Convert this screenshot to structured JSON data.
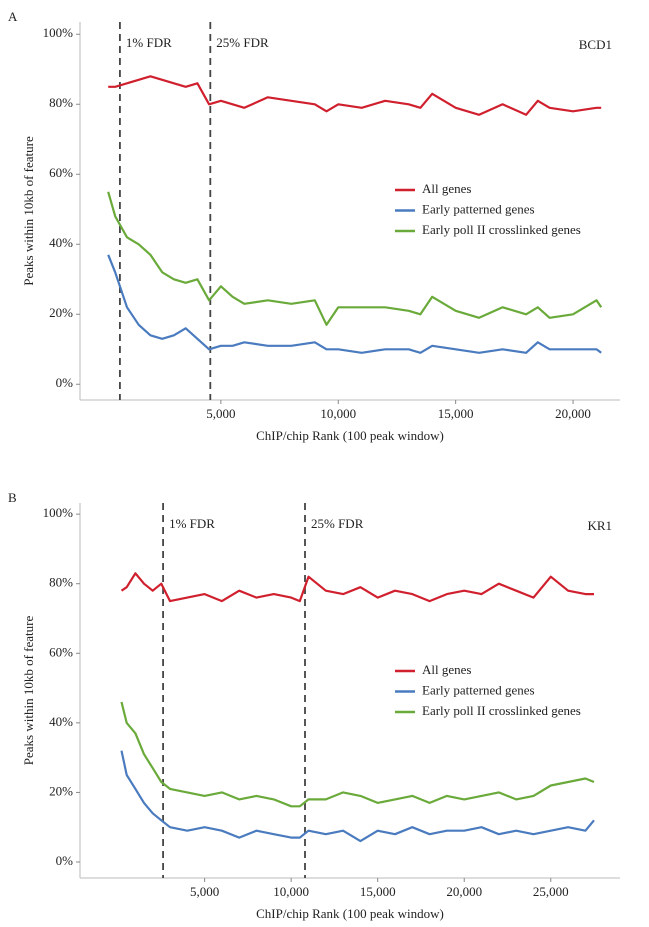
{
  "chart_data": [
    {
      "type": "line",
      "panel_label": "A",
      "annotation": "BCD1",
      "x_label": "ChIP/chip Rank (100 peak window)",
      "y_label": "Peaks within 10kb of feature",
      "x": [
        200,
        500,
        1000,
        1500,
        2000,
        2500,
        3000,
        3500,
        4000,
        4500,
        5000,
        5500,
        6000,
        7000,
        8000,
        9000,
        9500,
        10000,
        11000,
        12000,
        13000,
        13500,
        14000,
        15000,
        16000,
        17000,
        18000,
        18500,
        19000,
        20000,
        21000,
        21200
      ],
      "series": [
        {
          "name": "All genes",
          "color": "#d0202e",
          "values": [
            85,
            85,
            86,
            87,
            88,
            87,
            86,
            85,
            86,
            80,
            81,
            80,
            79,
            82,
            81,
            80,
            78,
            80,
            79,
            81,
            80,
            79,
            83,
            79,
            77,
            80,
            77,
            81,
            79,
            78,
            79,
            79
          ]
        },
        {
          "name": "Early patterned genes",
          "color": "#4a7bbf",
          "values": [
            37,
            32,
            22,
            17,
            14,
            13,
            14,
            16,
            13,
            10,
            11,
            11,
            12,
            11,
            11,
            12,
            10,
            10,
            9,
            10,
            10,
            9,
            11,
            10,
            9,
            10,
            9,
            12,
            10,
            10,
            10,
            9
          ]
        },
        {
          "name": "Early poll II crosslinked genes",
          "color": "#6aaa3a",
          "values": [
            55,
            48,
            42,
            40,
            37,
            32,
            30,
            29,
            30,
            24,
            28,
            25,
            23,
            24,
            23,
            24,
            17,
            22,
            22,
            22,
            21,
            20,
            25,
            21,
            19,
            22,
            20,
            22,
            19,
            20,
            24,
            22
          ]
        }
      ],
      "vlines": [
        {
          "x": 700,
          "label": "1% FDR"
        },
        {
          "x": 4550,
          "label": "25% FDR"
        }
      ],
      "xlim": [
        -1000,
        22000
      ],
      "ylim": [
        -4.5,
        103.5
      ],
      "xticks": [
        {
          "value": 5000,
          "label": "5,000"
        },
        {
          "value": 10000,
          "label": "10,000"
        },
        {
          "value": 15000,
          "label": "15,000"
        },
        {
          "value": 20000,
          "label": "20,000"
        }
      ],
      "yticks": [
        {
          "value": 0,
          "label": "0%"
        },
        {
          "value": 20,
          "label": "20%"
        },
        {
          "value": 40,
          "label": "40%"
        },
        {
          "value": 60,
          "label": "60%"
        },
        {
          "value": 80,
          "label": "80%"
        },
        {
          "value": 100,
          "label": "100%"
        }
      ],
      "legend": "right"
    },
    {
      "type": "line",
      "panel_label": "B",
      "annotation": "KR1",
      "x_label": "ChIP/chip Rank (100 peak window)",
      "y_label": "Peaks within 10kb of feature",
      "x": [
        200,
        500,
        1000,
        1500,
        2000,
        2500,
        3000,
        4000,
        5000,
        6000,
        7000,
        8000,
        9000,
        10000,
        10500,
        11000,
        12000,
        13000,
        14000,
        15000,
        16000,
        17000,
        18000,
        19000,
        20000,
        21000,
        22000,
        23000,
        24000,
        25000,
        26000,
        27000,
        27500
      ],
      "series": [
        {
          "name": "All genes",
          "color": "#d0202e",
          "values": [
            78,
            79,
            83,
            80,
            78,
            80,
            75,
            76,
            77,
            75,
            78,
            76,
            77,
            76,
            75,
            82,
            78,
            77,
            79,
            76,
            78,
            77,
            75,
            77,
            78,
            77,
            80,
            78,
            76,
            82,
            78,
            77,
            77
          ]
        },
        {
          "name": "Early patterned genes",
          "color": "#4a7bbf",
          "values": [
            32,
            25,
            21,
            17,
            14,
            12,
            10,
            9,
            10,
            9,
            7,
            9,
            8,
            7,
            7,
            9,
            8,
            9,
            6,
            9,
            8,
            10,
            8,
            9,
            9,
            10,
            8,
            9,
            8,
            9,
            10,
            9,
            12
          ]
        },
        {
          "name": "Early poll II crosslinked genes",
          "color": "#6aaa3a",
          "values": [
            46,
            40,
            37,
            31,
            27,
            23,
            21,
            20,
            19,
            20,
            18,
            19,
            18,
            16,
            16,
            18,
            18,
            20,
            19,
            17,
            18,
            19,
            17,
            19,
            18,
            19,
            20,
            18,
            19,
            22,
            23,
            24,
            23
          ]
        }
      ],
      "vlines": [
        {
          "x": 2600,
          "label": "1% FDR"
        },
        {
          "x": 10800,
          "label": "25% FDR"
        }
      ],
      "xlim": [
        -2200,
        29000
      ],
      "ylim": [
        -4.6,
        103.2
      ],
      "xticks": [
        {
          "value": 5000,
          "label": "5,000"
        },
        {
          "value": 10000,
          "label": "10,000"
        },
        {
          "value": 15000,
          "label": "15,000"
        },
        {
          "value": 20000,
          "label": "20,000"
        },
        {
          "value": 25000,
          "label": "25,000"
        }
      ],
      "yticks": [
        {
          "value": 0,
          "label": "0%"
        },
        {
          "value": 20,
          "label": "20%"
        },
        {
          "value": 40,
          "label": "40%"
        },
        {
          "value": 60,
          "label": "60%"
        },
        {
          "value": 80,
          "label": "80%"
        },
        {
          "value": 100,
          "label": "100%"
        }
      ],
      "legend": "right"
    }
  ]
}
